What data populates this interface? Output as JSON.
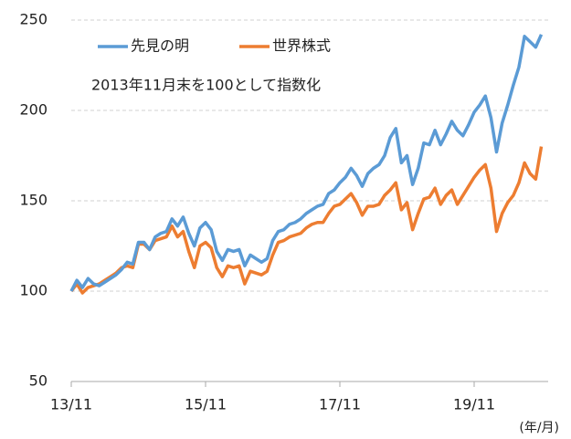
{
  "chart_data": {
    "type": "line",
    "subtitle": "2013年11月末を100として指数化",
    "x_unit": "(年/月)",
    "categories": [
      "13/11",
      null,
      null,
      null,
      null,
      null,
      null,
      null,
      null,
      null,
      null,
      null,
      null,
      null,
      null,
      null,
      null,
      null,
      null,
      null,
      null,
      null,
      null,
      null,
      "15/11",
      null,
      null,
      null,
      null,
      null,
      null,
      null,
      null,
      null,
      null,
      null,
      null,
      null,
      null,
      null,
      null,
      null,
      null,
      null,
      null,
      null,
      null,
      null,
      "17/11",
      null,
      null,
      null,
      null,
      null,
      null,
      null,
      null,
      null,
      null,
      null,
      null,
      null,
      null,
      null,
      null,
      null,
      null,
      null,
      null,
      null,
      null,
      null,
      "19/11",
      null,
      null,
      null,
      null,
      null,
      null,
      null,
      null,
      null,
      null,
      null,
      null
    ],
    "series": [
      {
        "name": "先見の明",
        "color": "#5b9bd5",
        "values": [
          100,
          106,
          102,
          107,
          104,
          103,
          105,
          107,
          109,
          112,
          116,
          115,
          127,
          127,
          123,
          130,
          132,
          133,
          140,
          136,
          141,
          132,
          125,
          135,
          138,
          134,
          122,
          117,
          123,
          122,
          123,
          114,
          120,
          118,
          116,
          118,
          128,
          133,
          134,
          137,
          138,
          140,
          143,
          145,
          147,
          148,
          154,
          156,
          160,
          163,
          168,
          164,
          158,
          165,
          168,
          170,
          175,
          185,
          190,
          171,
          175,
          159,
          168,
          182,
          181,
          189,
          181,
          187,
          194,
          189,
          186,
          192,
          199,
          203,
          208,
          196,
          177,
          193,
          203,
          214,
          224,
          241,
          238,
          235,
          242
        ]
      },
      {
        "name": "世界株式",
        "color": "#ed7d31",
        "values": [
          100,
          104,
          99,
          102,
          103,
          104,
          106,
          108,
          110,
          113,
          114,
          113,
          126,
          126,
          123,
          128,
          129,
          130,
          136,
          130,
          133,
          122,
          113,
          125,
          127,
          124,
          113,
          108,
          114,
          113,
          114,
          104,
          111,
          110,
          109,
          111,
          120,
          127,
          128,
          130,
          131,
          132,
          135,
          137,
          138,
          138,
          143,
          147,
          148,
          151,
          154,
          149,
          142,
          147,
          147,
          148,
          153,
          156,
          160,
          145,
          149,
          134,
          143,
          151,
          152,
          157,
          148,
          153,
          156,
          148,
          153,
          158,
          163,
          167,
          170,
          157,
          133,
          143,
          149,
          153,
          160,
          171,
          165,
          162,
          180
        ]
      }
    ],
    "ylim": [
      50,
      250
    ],
    "yticks": [
      50,
      100,
      150,
      200,
      250
    ],
    "grid": true
  }
}
